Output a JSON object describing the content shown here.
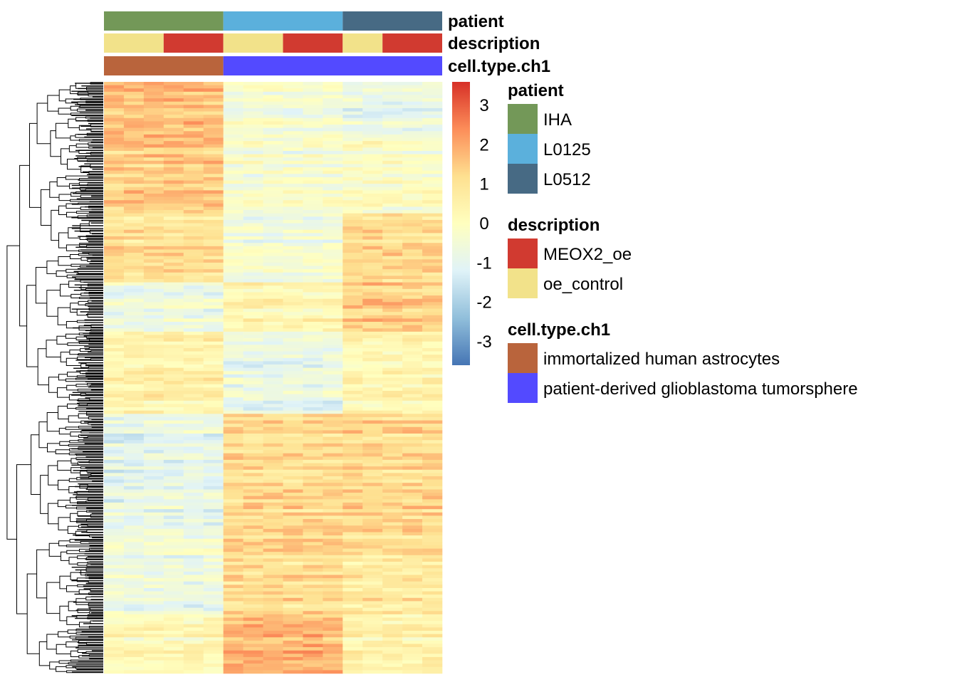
{
  "chart_data": {
    "type": "heatmap",
    "title": "",
    "xlabel": "",
    "ylabel": "",
    "samples": 17,
    "columns": [
      {
        "patient": "IHA",
        "description": "oe_control",
        "cell_type": "immortalized human astrocytes"
      },
      {
        "patient": "IHA",
        "description": "oe_control",
        "cell_type": "immortalized human astrocytes"
      },
      {
        "patient": "IHA",
        "description": "oe_control",
        "cell_type": "immortalized human astrocytes"
      },
      {
        "patient": "IHA",
        "description": "MEOX2_oe",
        "cell_type": "immortalized human astrocytes"
      },
      {
        "patient": "IHA",
        "description": "MEOX2_oe",
        "cell_type": "immortalized human astrocytes"
      },
      {
        "patient": "IHA",
        "description": "MEOX2_oe",
        "cell_type": "immortalized human astrocytes"
      },
      {
        "patient": "L0125",
        "description": "oe_control",
        "cell_type": "patient-derived glioblastoma tumorsphere"
      },
      {
        "patient": "L0125",
        "description": "oe_control",
        "cell_type": "patient-derived glioblastoma tumorsphere"
      },
      {
        "patient": "L0125",
        "description": "oe_control",
        "cell_type": "patient-derived glioblastoma tumorsphere"
      },
      {
        "patient": "L0125",
        "description": "MEOX2_oe",
        "cell_type": "patient-derived glioblastoma tumorsphere"
      },
      {
        "patient": "L0125",
        "description": "MEOX2_oe",
        "cell_type": "patient-derived glioblastoma tumorsphere"
      },
      {
        "patient": "L0125",
        "description": "MEOX2_oe",
        "cell_type": "patient-derived glioblastoma tumorsphere"
      },
      {
        "patient": "L0512",
        "description": "oe_control",
        "cell_type": "patient-derived glioblastoma tumorsphere"
      },
      {
        "patient": "L0512",
        "description": "oe_control",
        "cell_type": "patient-derived glioblastoma tumorsphere"
      },
      {
        "patient": "L0512",
        "description": "MEOX2_oe",
        "cell_type": "patient-derived glioblastoma tumorsphere"
      },
      {
        "patient": "L0512",
        "description": "MEOX2_oe",
        "cell_type": "patient-derived glioblastoma tumorsphere"
      },
      {
        "patient": "L0512",
        "description": "MEOX2_oe",
        "cell_type": "patient-derived glioblastoma tumorsphere"
      }
    ],
    "column_groups": [
      "IHA",
      "IHA",
      "IHA",
      "IHA",
      "IHA",
      "IHA",
      "L0125",
      "L0125",
      "L0125",
      "L0125",
      "L0125",
      "L0125",
      "L0512",
      "L0512",
      "L0512",
      "L0512",
      "L0512"
    ],
    "cluster_profiles": [
      {
        "row_fraction": 0.1,
        "values": {
          "IHA": 1.6,
          "L0125": -0.5,
          "L0512": -0.8
        }
      },
      {
        "row_fraction": 0.12,
        "values": {
          "IHA": 1.4,
          "L0125": -0.4,
          "L0512": -0.2
        }
      },
      {
        "row_fraction": 0.12,
        "values": {
          "IHA": 1.0,
          "L0125": -0.5,
          "L0512": 1.1
        }
      },
      {
        "row_fraction": 0.08,
        "values": {
          "IHA": -0.6,
          "L0125": 0.4,
          "L0512": 1.5
        }
      },
      {
        "row_fraction": 0.14,
        "values": {
          "IHA": 0.5,
          "L0125": -0.8,
          "L0512": 0.3
        }
      },
      {
        "row_fraction": 0.2,
        "values": {
          "IHA": -0.9,
          "L0125": 1.2,
          "L0512": 1.2
        }
      },
      {
        "row_fraction": 0.14,
        "values": {
          "IHA": -0.7,
          "L0125": 1.1,
          "L0512": 0.8
        }
      },
      {
        "row_fraction": 0.1,
        "values": {
          "IHA": 0.2,
          "L0125": 1.8,
          "L0512": 0.4
        }
      }
    ],
    "color_scale": {
      "min": -3.6,
      "max": 3.6,
      "ticks": [
        3,
        2,
        1,
        0,
        -1,
        -2,
        -3
      ],
      "tick_labels": [
        "3",
        "2",
        "1",
        "0",
        "-1",
        "-2",
        "-3"
      ],
      "colors": [
        "#4575b4",
        "#91bfdb",
        "#e0f3f8",
        "#ffffbf",
        "#fee090",
        "#fc8d59",
        "#d73027"
      ]
    },
    "annotation_bars": [
      {
        "name": "patient",
        "segments": [
          {
            "label": "IHA",
            "n": 6
          },
          {
            "label": "L0125",
            "n": 6
          },
          {
            "label": "L0512",
            "n": 5
          }
        ]
      },
      {
        "name": "description",
        "segments": [
          {
            "label": "oe_control",
            "n": 3
          },
          {
            "label": "MEOX2_oe",
            "n": 3
          },
          {
            "label": "oe_control",
            "n": 3
          },
          {
            "label": "MEOX2_oe",
            "n": 3
          },
          {
            "label": "oe_control",
            "n": 2
          },
          {
            "label": "MEOX2_oe",
            "n": 3
          }
        ]
      },
      {
        "name": "cell.type.ch1",
        "segments": [
          {
            "label": "immortalized human astrocytes",
            "n": 6
          },
          {
            "label": "patient-derived glioblastoma tumorsphere",
            "n": 11
          }
        ]
      }
    ],
    "legend": {
      "groups": [
        {
          "title": "patient",
          "items": [
            {
              "label": "IHA",
              "color": "#739858"
            },
            {
              "label": "L0125",
              "color": "#5bb0dc"
            },
            {
              "label": "L0512",
              "color": "#476a84"
            }
          ]
        },
        {
          "title": "description",
          "items": [
            {
              "label": "MEOX2_oe",
              "color": "#d13a30"
            },
            {
              "label": "oe_control",
              "color": "#f2e28a"
            }
          ]
        },
        {
          "title": "cell.type.ch1",
          "items": [
            {
              "label": "immortalized human astrocytes",
              "color": "#b9643c"
            },
            {
              "label": "patient-derived glioblastoma tumorsphere",
              "color": "#534aff"
            }
          ]
        }
      ]
    },
    "row_dendrogram": true,
    "column_dendrogram": false,
    "grid": false
  }
}
